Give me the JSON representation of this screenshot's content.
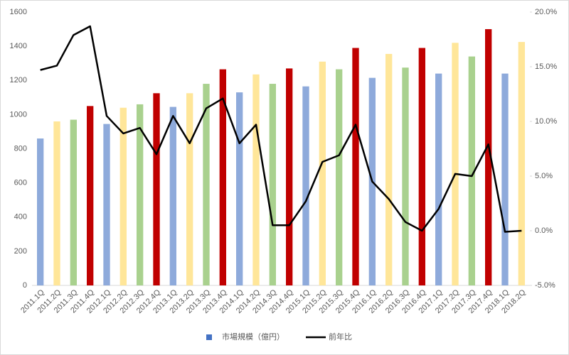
{
  "chart_data": {
    "type": "bar_line",
    "categories": [
      "2011.1Q",
      "2011.2Q",
      "2011.3Q",
      "2011.4Q",
      "2012.1Q",
      "2012.2Q",
      "2012.3Q",
      "2012.4Q",
      "2013.1Q",
      "2013.2Q",
      "2013.3Q",
      "2013.4Q",
      "2014.1Q",
      "2014.2Q",
      "2014.3Q",
      "2014.4Q",
      "2015.1Q",
      "2015.2Q",
      "2015.3Q",
      "2015.4Q",
      "2016.1Q",
      "2016.2Q",
      "2016.3Q",
      "2016.4Q",
      "2017.1Q",
      "2017.2Q",
      "2017.3Q",
      "2017.4Q",
      "2018.1Q",
      "2018.2Q"
    ],
    "series": [
      {
        "name": "市場規模（億円）",
        "type": "bar",
        "color": "#4472c4",
        "point_colors": [
          "#8eaadb",
          "#ffe699",
          "#a9d18e",
          "#c00000",
          "#8eaadb",
          "#ffe699",
          "#a9d18e",
          "#c00000",
          "#8eaadb",
          "#ffe699",
          "#a9d18e",
          "#c00000",
          "#8eaadb",
          "#ffe699",
          "#a9d18e",
          "#c00000",
          "#8eaadb",
          "#ffe699",
          "#a9d18e",
          "#c00000",
          "#8eaadb",
          "#ffe699",
          "#a9d18e",
          "#c00000",
          "#8eaadb",
          "#ffe699",
          "#a9d18e",
          "#c00000",
          "#8eaadb",
          "#ffe699"
        ],
        "values": [
          860,
          960,
          970,
          1050,
          945,
          1040,
          1060,
          1125,
          1045,
          1125,
          1180,
          1265,
          1130,
          1235,
          1180,
          1270,
          1165,
          1310,
          1265,
          1390,
          1215,
          1355,
          1275,
          1390,
          1240,
          1420,
          1340,
          1500,
          1240,
          1425
        ]
      },
      {
        "name": "前年比",
        "type": "line",
        "axis": "y2",
        "color": "#000000",
        "values": [
          14.7,
          15.1,
          17.9,
          18.7,
          10.5,
          8.9,
          9.4,
          7.0,
          10.5,
          8.0,
          11.2,
          12.1,
          8.0,
          9.7,
          0.5,
          0.5,
          2.7,
          6.3,
          6.9,
          9.7,
          4.5,
          2.9,
          0.8,
          0.0,
          2.0,
          5.2,
          5.0,
          7.9,
          -0.1,
          0.0
        ]
      }
    ],
    "ylim": [
      0,
      1600
    ],
    "yticks": [
      0,
      200,
      400,
      600,
      800,
      1000,
      1200,
      1400,
      1600
    ],
    "y2lim": [
      -5,
      20
    ],
    "y2ticks": [
      {
        "value": -5,
        "label": "-5.0%"
      },
      {
        "value": 0,
        "label": "0.0%"
      },
      {
        "value": 5,
        "label": "5.0%"
      },
      {
        "value": 10,
        "label": "10.0%"
      },
      {
        "value": 15,
        "label": "15.0%"
      },
      {
        "value": 20,
        "label": "20.0%"
      }
    ],
    "grid": false,
    "legend": "bottom"
  }
}
